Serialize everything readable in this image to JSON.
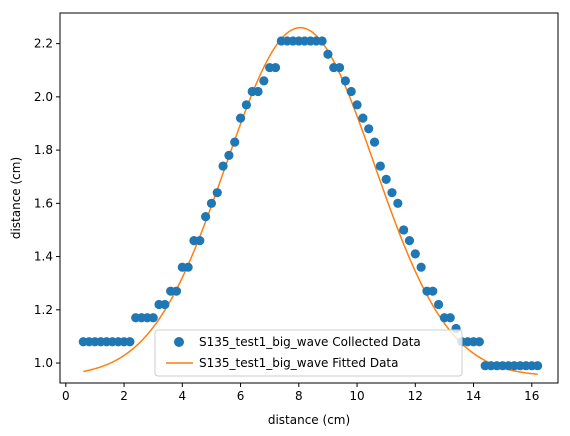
{
  "chart_data": {
    "type": "scatter",
    "xlabel": "distance (cm)",
    "ylabel": "distance (cm)",
    "xlim": [
      -0.2,
      16.9
    ],
    "ylim": [
      0.925,
      2.315
    ],
    "xticks": [
      0,
      2,
      4,
      6,
      8,
      10,
      12,
      14,
      16
    ],
    "yticks": [
      1.0,
      1.2,
      1.4,
      1.6,
      1.8,
      2.0,
      2.2
    ],
    "xtick_labels": [
      "0",
      "2",
      "4",
      "6",
      "8",
      "10",
      "12",
      "14",
      "16"
    ],
    "ytick_labels": [
      "1.0",
      "1.2",
      "1.4",
      "1.6",
      "1.8",
      "2.0",
      "2.2"
    ],
    "grid": false,
    "legend_position": "lower center",
    "series": [
      {
        "name": "S135_test1_big_wave Collected Data",
        "kind": "scatter",
        "color": "#1f77b4",
        "x": [
          0.6,
          0.8,
          1.0,
          1.2,
          1.4,
          1.6,
          1.8,
          2.0,
          2.2,
          2.4,
          2.6,
          2.8,
          3.0,
          3.2,
          3.4,
          3.6,
          3.8,
          4.0,
          4.2,
          4.4,
          4.6,
          4.8,
          5.0,
          5.2,
          5.4,
          5.6,
          5.8,
          6.0,
          6.2,
          6.4,
          6.6,
          6.8,
          7.0,
          7.2,
          7.4,
          7.6,
          7.8,
          8.0,
          8.2,
          8.4,
          8.6,
          8.8,
          9.0,
          9.2,
          9.4,
          9.6,
          9.8,
          10.0,
          10.2,
          10.4,
          10.6,
          10.8,
          11.0,
          11.2,
          11.4,
          11.6,
          11.8,
          12.0,
          12.2,
          12.4,
          12.6,
          12.8,
          13.0,
          13.2,
          13.4,
          13.6,
          13.8,
          14.0,
          14.2,
          14.4,
          14.6,
          14.8,
          15.0,
          15.2,
          15.4,
          15.6,
          15.8,
          16.0,
          16.2
        ],
        "y": [
          1.08,
          1.08,
          1.08,
          1.08,
          1.08,
          1.08,
          1.08,
          1.08,
          1.08,
          1.17,
          1.17,
          1.17,
          1.17,
          1.22,
          1.22,
          1.27,
          1.27,
          1.36,
          1.36,
          1.46,
          1.46,
          1.55,
          1.6,
          1.64,
          1.74,
          1.78,
          1.83,
          1.92,
          1.97,
          2.02,
          2.02,
          2.06,
          2.11,
          2.11,
          2.21,
          2.21,
          2.21,
          2.21,
          2.21,
          2.21,
          2.21,
          2.21,
          2.16,
          2.11,
          2.11,
          2.06,
          2.02,
          1.97,
          1.92,
          1.88,
          1.83,
          1.74,
          1.69,
          1.64,
          1.6,
          1.5,
          1.46,
          1.41,
          1.36,
          1.27,
          1.27,
          1.22,
          1.17,
          1.17,
          1.13,
          1.08,
          1.08,
          1.08,
          1.08,
          0.99,
          0.99,
          0.99,
          0.99,
          0.99,
          0.99,
          0.99,
          0.99,
          0.99,
          0.99
        ]
      },
      {
        "name": "S135_test1_big_wave Fitted Data",
        "kind": "line",
        "color": "#ff7f0e",
        "baseline": 0.95,
        "amplitude": 1.31,
        "center": 8.05,
        "width": 2.55,
        "x_range": [
          0.6,
          16.2
        ]
      }
    ]
  }
}
